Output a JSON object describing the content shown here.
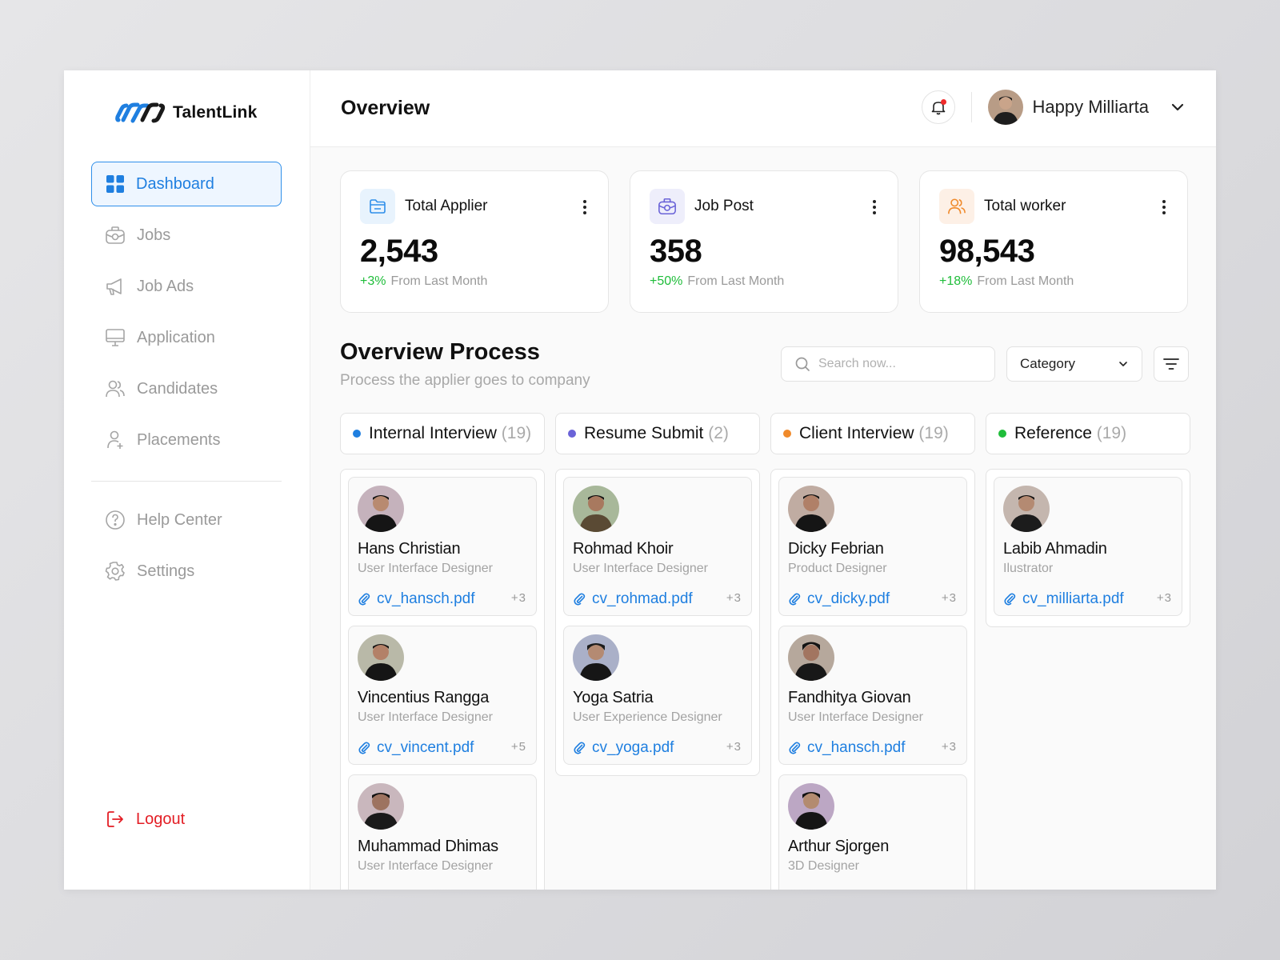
{
  "brand": {
    "name": "TalentLink",
    "accent": "#1f7fe0"
  },
  "sidebar": {
    "items": [
      {
        "label": "Dashboard",
        "icon": "grid-icon",
        "active": true
      },
      {
        "label": "Jobs",
        "icon": "briefcase-icon",
        "active": false
      },
      {
        "label": "Job Ads",
        "icon": "megaphone-icon",
        "active": false
      },
      {
        "label": "Application",
        "icon": "monitor-icon",
        "active": false
      },
      {
        "label": "Candidates",
        "icon": "users-icon",
        "active": false
      },
      {
        "label": "Placements",
        "icon": "user-plus-icon",
        "active": false
      }
    ],
    "secondary": [
      {
        "label": "Help Center",
        "icon": "help-icon"
      },
      {
        "label": "Settings",
        "icon": "gear-icon"
      }
    ],
    "logout": "Logout"
  },
  "header": {
    "title": "Overview",
    "user_name": "Happy Milliarta"
  },
  "stats": [
    {
      "label": "Total Applier",
      "value": "2,543",
      "change": "+3%",
      "note": "From Last Month",
      "icon": "folder-icon",
      "tint": "#e8f3fd",
      "color": "#2f8fea"
    },
    {
      "label": "Job Post",
      "value": "358",
      "change": "+50%",
      "note": "From Last Month",
      "icon": "briefcase-icon",
      "tint": "#eeeefb",
      "color": "#6a63d8"
    },
    {
      "label": "Total worker",
      "value": "98,543",
      "change": "+18%",
      "note": "From Last Month",
      "icon": "users-icon",
      "tint": "#fdf0e6",
      "color": "#f08a2b"
    }
  ],
  "process": {
    "title": "Overview Process",
    "subtitle": "Process the applier goes to company",
    "search_placeholder": "Search now...",
    "category_label": "Category"
  },
  "columns": [
    {
      "label": "Internal Interview",
      "count": "(19)",
      "color": "#1f7fe0",
      "cards": [
        {
          "name": "Hans Christian",
          "role": "User Interface Designer",
          "file": "cv_hansch.pdf",
          "more": "+3"
        },
        {
          "name": "Vincentius Rangga",
          "role": "User Interface Designer",
          "file": "cv_vincent.pdf",
          "more": "+5"
        },
        {
          "name": "Muhammad Dhimas",
          "role": "User Interface Designer",
          "file": "",
          "more": ""
        }
      ]
    },
    {
      "label": "Resume Submit",
      "count": "(2)",
      "color": "#6a63d8",
      "cards": [
        {
          "name": "Rohmad Khoir",
          "role": "User Interface Designer",
          "file": "cv_rohmad.pdf",
          "more": "+3"
        },
        {
          "name": "Yoga Satria",
          "role": "User Experience Designer",
          "file": "cv_yoga.pdf",
          "more": "+3"
        }
      ]
    },
    {
      "label": "Client Interview",
      "count": "(19)",
      "color": "#f08a2b",
      "cards": [
        {
          "name": "Dicky Febrian",
          "role": "Product Designer",
          "file": "cv_dicky.pdf",
          "more": "+3"
        },
        {
          "name": "Fandhitya Giovan",
          "role": "User Interface Designer",
          "file": "cv_hansch.pdf",
          "more": "+3"
        },
        {
          "name": "Arthur Sjorgen",
          "role": "3D Designer",
          "file": "",
          "more": ""
        }
      ]
    },
    {
      "label": "Reference",
      "count": "(19)",
      "color": "#1fbd3a",
      "cards": [
        {
          "name": "Labib Ahmadin",
          "role": "Ilustrator",
          "file": "cv_milliarta.pdf",
          "more": "+3"
        }
      ]
    }
  ]
}
